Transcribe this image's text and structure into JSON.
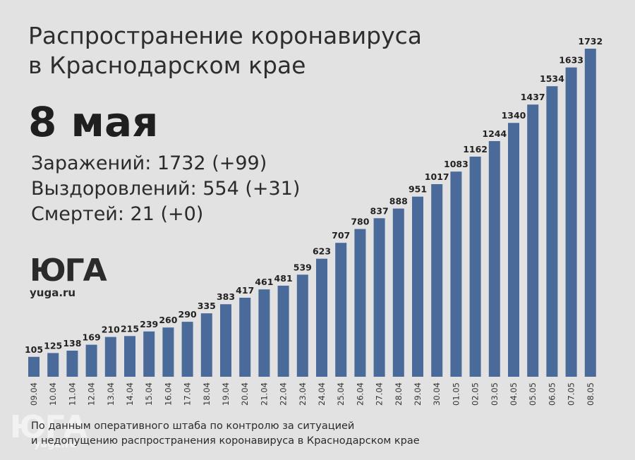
{
  "title_line1": "Распространение коронавируса",
  "title_line2": "в Краснодарском крае",
  "date": "8 мая",
  "stats": {
    "infected": "Заражений: 1732 (+99)",
    "recovered": "Выздоровлений: 554 (+31)",
    "deaths": "Смертей: 21 (+0)"
  },
  "logo": {
    "mark": "ЮГА",
    "url": "yuga.ru"
  },
  "footnote": {
    "line1": "По данным оперативного штаба по контролю за ситуацией",
    "line2": "и недопущению распространения коронавируса в Краснодарском крае"
  },
  "colors": {
    "bar": "#4a6a9a",
    "background": "#e2e2e2"
  },
  "chart_data": {
    "type": "bar",
    "categories": [
      "09.04",
      "10.04",
      "11.04",
      "12.04",
      "13.04",
      "14.04",
      "15.04",
      "16.04",
      "17.04",
      "18.04",
      "19.04",
      "20.04",
      "21.04",
      "22.04",
      "23.04",
      "24.04",
      "25.04",
      "26.04",
      "27.04",
      "28.04",
      "29.04",
      "30.04",
      "01.05",
      "02.05",
      "03.05",
      "04.05",
      "05.05",
      "06.05",
      "07.05",
      "08.05"
    ],
    "values": [
      105,
      125,
      138,
      169,
      210,
      215,
      239,
      260,
      290,
      335,
      383,
      417,
      461,
      481,
      539,
      623,
      707,
      780,
      837,
      888,
      951,
      1017,
      1083,
      1162,
      1244,
      1340,
      1437,
      1534,
      1633,
      1732
    ],
    "title": "Распространение коронавируса в Краснодарском крае",
    "xlabel": "",
    "ylabel": "",
    "ylim": [
      0,
      1732
    ],
    "grid": false,
    "data_labels": true
  }
}
